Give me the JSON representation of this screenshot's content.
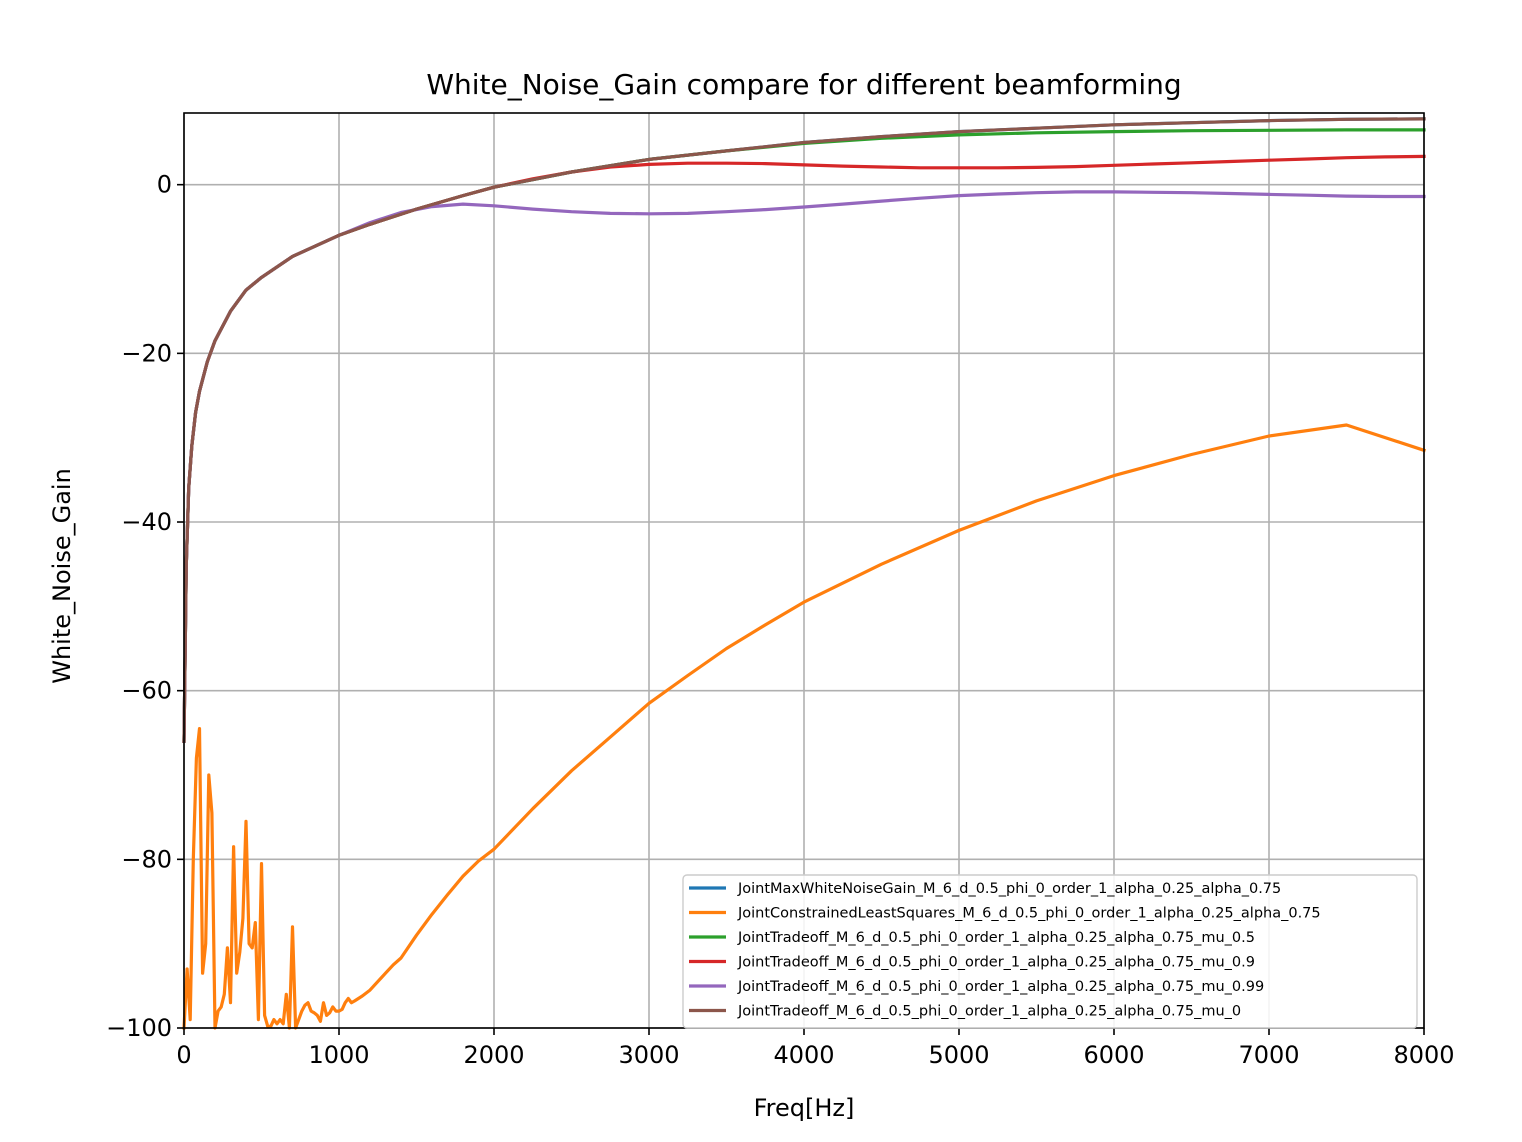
{
  "chart_data": {
    "type": "line",
    "title": "White_Noise_Gain compare for different beamforming",
    "xlabel": "Freq[Hz]",
    "ylabel": "White_Noise_Gain",
    "xlim": [
      0,
      8000
    ],
    "ylim": [
      -100,
      8.5
    ],
    "xticks": [
      0,
      1000,
      2000,
      3000,
      4000,
      5000,
      6000,
      7000,
      8000
    ],
    "xtick_labels": [
      "0",
      "1000",
      "2000",
      "3000",
      "4000",
      "5000",
      "6000",
      "7000",
      "8000"
    ],
    "yticks": [
      -100,
      -80,
      -60,
      -40,
      -20,
      0
    ],
    "ytick_labels": [
      "−100",
      "−80",
      "−60",
      "−40",
      "−20",
      "0"
    ],
    "grid": true,
    "legend_position": "lower-right",
    "series": [
      {
        "name": "JointMaxWhiteNoiseGain_M_6_d_0.5_phi_0_order_1_alpha_0.25_alpha_0.75",
        "color": "#1f77b4",
        "x": [
          0,
          15,
          30,
          50,
          75,
          100,
          150,
          200,
          300,
          400,
          500,
          700,
          1000,
          1200,
          1500,
          1800,
          2000,
          2500,
          3000,
          3500,
          4000,
          4500,
          5000,
          5500,
          6000,
          6500,
          7000,
          7500,
          8000
        ],
        "y": [
          -66,
          -45,
          -36,
          -31,
          -27,
          -24.5,
          -21,
          -18.5,
          -15,
          -12.5,
          -11,
          -8.5,
          -6,
          -4.7,
          -2.9,
          -1.3,
          -0.3,
          1.5,
          3,
          4,
          5,
          5.7,
          6.3,
          6.7,
          7.1,
          7.35,
          7.6,
          7.75,
          7.8
        ]
      },
      {
        "name": "JointConstrainedLeastSquares_M_6_d_0.5_phi_0_order_1_alpha_0.25_alpha_0.75",
        "color": "#ff7f0e",
        "x": [
          0,
          20,
          40,
          60,
          80,
          100,
          120,
          140,
          160,
          180,
          200,
          220,
          240,
          260,
          280,
          300,
          320,
          340,
          360,
          380,
          400,
          420,
          440,
          460,
          480,
          500,
          520,
          540,
          560,
          580,
          600,
          620,
          640,
          660,
          680,
          700,
          720,
          740,
          760,
          780,
          800,
          820,
          840,
          860,
          880,
          900,
          920,
          940,
          960,
          980,
          1000,
          1020,
          1040,
          1060,
          1080,
          1100,
          1150,
          1200,
          1250,
          1300,
          1350,
          1400,
          1500,
          1600,
          1700,
          1800,
          1900,
          2000,
          2250,
          2500,
          2750,
          3000,
          3250,
          3500,
          3750,
          4000,
          4500,
          5000,
          5500,
          6000,
          6500,
          7000,
          7500,
          8000
        ],
        "y": [
          -100,
          -93,
          -99,
          -80,
          -68,
          -64.5,
          -93.5,
          -90,
          -70,
          -74.5,
          -100,
          -98,
          -97.5,
          -96,
          -90.5,
          -97,
          -78.5,
          -93.5,
          -91,
          -87,
          -75.5,
          -90,
          -90.5,
          -87.5,
          -99,
          -80.5,
          -98.5,
          -99.8,
          -99.8,
          -99,
          -99.5,
          -99,
          -99.5,
          -96,
          -100,
          -88,
          -100,
          -99,
          -98,
          -97.3,
          -97,
          -98,
          -98.2,
          -98.5,
          -99.2,
          -97,
          -98.5,
          -98.2,
          -97.5,
          -98,
          -98,
          -97.8,
          -97,
          -96.5,
          -97,
          -96.8,
          -96.2,
          -95.5,
          -94.5,
          -93.5,
          -92.5,
          -91.7,
          -89,
          -86.5,
          -84.2,
          -82,
          -80.2,
          -78.8,
          -74,
          -69.5,
          -65.5,
          -61.5,
          -58.2,
          -55,
          -52.2,
          -49.5,
          -45,
          -41,
          -37.5,
          -34.5,
          -32,
          -29.8,
          -28.5,
          -31.5
        ]
      },
      {
        "name": "JointTradeoff_M_6_d_0.5_phi_0_order_1_alpha_0.25_alpha_0.75_mu_0.5",
        "color": "#2ca02c",
        "x": [
          0,
          15,
          30,
          50,
          75,
          100,
          150,
          200,
          300,
          400,
          500,
          700,
          1000,
          1200,
          1500,
          1800,
          2000,
          2500,
          3000,
          3500,
          4000,
          4500,
          5000,
          5500,
          6000,
          6500,
          7000,
          7500,
          8000
        ],
        "y": [
          -66,
          -45,
          -36,
          -31,
          -27,
          -24.5,
          -21,
          -18.5,
          -15,
          -12.5,
          -11,
          -8.5,
          -6,
          -4.7,
          -2.9,
          -1.3,
          -0.3,
          1.5,
          3,
          4,
          4.9,
          5.5,
          5.9,
          6.15,
          6.3,
          6.4,
          6.45,
          6.5,
          6.5
        ]
      },
      {
        "name": "JointTradeoff_M_6_d_0.5_phi_0_order_1_alpha_0.25_alpha_0.75_mu_0.9",
        "color": "#d62728",
        "x": [
          0,
          15,
          30,
          50,
          75,
          100,
          150,
          200,
          300,
          400,
          500,
          700,
          1000,
          1200,
          1500,
          1800,
          2000,
          2250,
          2500,
          2750,
          3000,
          3250,
          3500,
          3750,
          4000,
          4250,
          4500,
          4750,
          5000,
          5250,
          5500,
          5750,
          6000,
          6250,
          6500,
          6750,
          7000,
          7250,
          7500,
          7750,
          8000
        ],
        "y": [
          -66,
          -45,
          -36,
          -31,
          -27,
          -24.5,
          -21,
          -18.5,
          -15,
          -12.5,
          -11,
          -8.5,
          -6,
          -4.7,
          -2.9,
          -1.3,
          -0.3,
          0.7,
          1.5,
          2.1,
          2.4,
          2.55,
          2.55,
          2.5,
          2.35,
          2.2,
          2.1,
          2.0,
          2.0,
          2.0,
          2.05,
          2.15,
          2.3,
          2.45,
          2.6,
          2.75,
          2.9,
          3.05,
          3.2,
          3.3,
          3.35
        ]
      },
      {
        "name": "JointTradeoff_M_6_d_0.5_phi_0_order_1_alpha_0.25_alpha_0.75_mu_0.99",
        "color": "#9467bd",
        "x": [
          0,
          15,
          30,
          50,
          75,
          100,
          150,
          200,
          300,
          400,
          500,
          700,
          1000,
          1200,
          1400,
          1600,
          1800,
          2000,
          2250,
          2500,
          2750,
          3000,
          3250,
          3500,
          3750,
          4000,
          4250,
          4500,
          4750,
          5000,
          5250,
          5500,
          5750,
          6000,
          6250,
          6500,
          6750,
          7000,
          7250,
          7500,
          7750,
          8000
        ],
        "y": [
          -66,
          -45,
          -36,
          -31,
          -27,
          -24.5,
          -21,
          -18.5,
          -15,
          -12.5,
          -11,
          -8.5,
          -6,
          -4.5,
          -3.3,
          -2.6,
          -2.3,
          -2.5,
          -2.9,
          -3.2,
          -3.4,
          -3.45,
          -3.4,
          -3.2,
          -2.95,
          -2.65,
          -2.3,
          -1.95,
          -1.6,
          -1.3,
          -1.1,
          -0.95,
          -0.85,
          -0.85,
          -0.9,
          -0.95,
          -1.05,
          -1.15,
          -1.25,
          -1.35,
          -1.4,
          -1.4
        ]
      },
      {
        "name": "JointTradeoff_M_6_d_0.5_phi_0_order_1_alpha_0.25_alpha_0.75_mu_0",
        "color": "#8c564b",
        "x": [
          0,
          15,
          30,
          50,
          75,
          100,
          150,
          200,
          300,
          400,
          500,
          700,
          1000,
          1200,
          1500,
          1800,
          2000,
          2500,
          3000,
          3500,
          4000,
          4500,
          5000,
          5500,
          6000,
          6500,
          7000,
          7500,
          8000
        ],
        "y": [
          -66,
          -45,
          -36,
          -31,
          -27,
          -24.5,
          -21,
          -18.5,
          -15,
          -12.5,
          -11,
          -8.5,
          -6,
          -4.7,
          -2.9,
          -1.3,
          -0.3,
          1.5,
          3,
          4,
          5,
          5.7,
          6.3,
          6.7,
          7.1,
          7.35,
          7.6,
          7.75,
          7.8
        ]
      }
    ]
  }
}
